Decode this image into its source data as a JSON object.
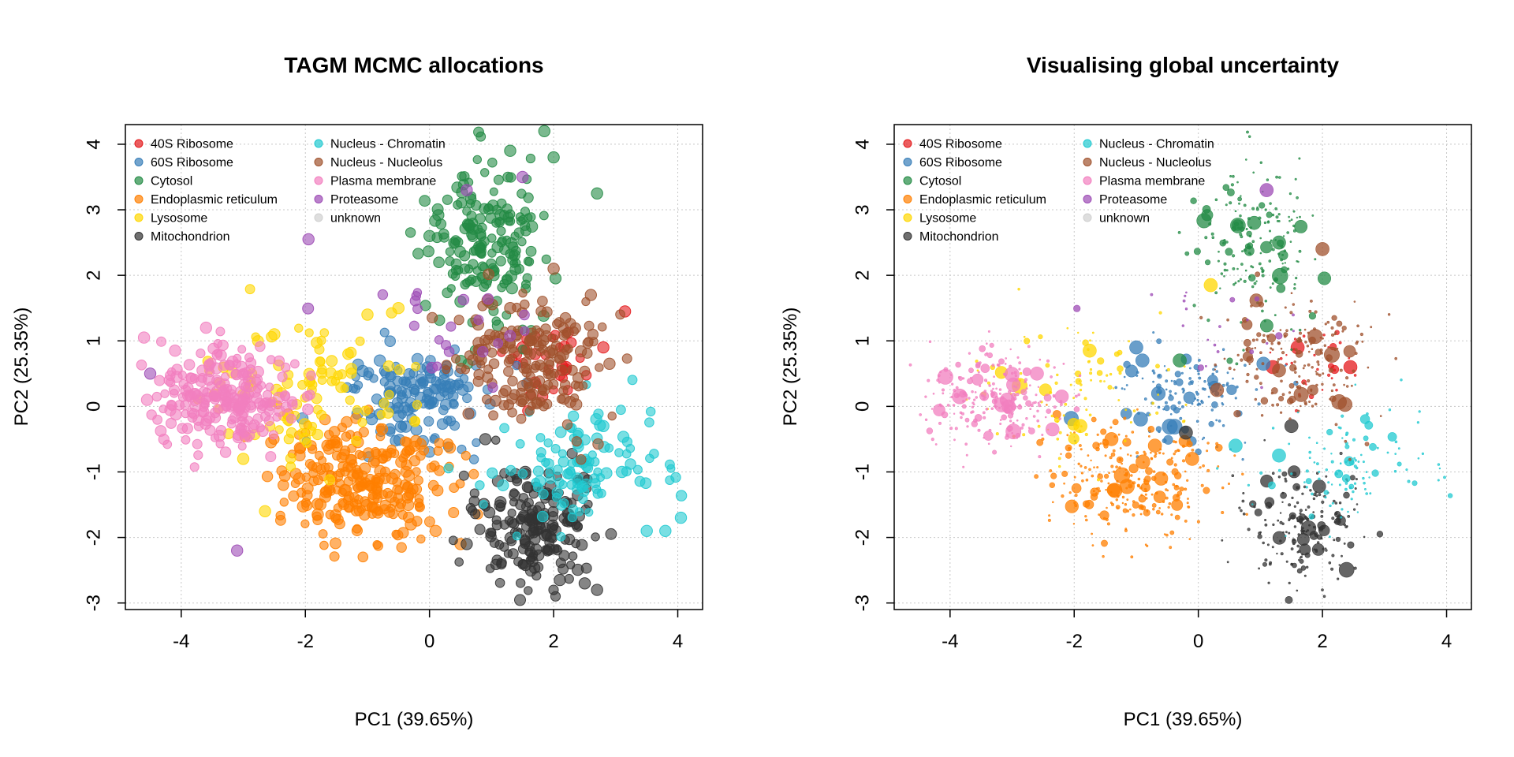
{
  "chart_data": [
    {
      "type": "scatter",
      "title": "TAGM MCMC allocations",
      "xlabel": "PC1 (39.65%)",
      "ylabel": "PC2 (25.35%)",
      "xlim": [
        -4.9,
        4.4
      ],
      "ylim": [
        -3.1,
        4.3
      ],
      "x_ticks": [
        -4,
        -2,
        0,
        2,
        4
      ],
      "y_ticks": [
        -3,
        -2,
        -1,
        0,
        1,
        2,
        3,
        4
      ],
      "x_tick_labels": [
        "-4",
        "-2",
        "0",
        "2",
        "4"
      ],
      "y_tick_labels": [
        "-3",
        "-2",
        "-1",
        "0",
        "1",
        "2",
        "3",
        "4"
      ],
      "grid": true,
      "legend_position": "top-left",
      "point_sizing": "uniform",
      "legend": [
        "40S Ribosome",
        "60S Ribosome",
        "Cytosol",
        "Endoplasmic reticulum",
        "Lysosome",
        "Mitochondrion",
        "Nucleus - Chromatin",
        "Nucleus - Nucleolus",
        "Plasma membrane",
        "Proteasome",
        "unknown"
      ],
      "clusters": [
        {
          "name": "40S Ribosome",
          "color": "#e41a1c",
          "center": [
            1.8,
            0.75
          ],
          "spread": [
            0.35,
            0.3
          ],
          "count": 30,
          "points": [
            [
              3.15,
              1.45
            ],
            [
              1.5,
              0.9
            ],
            [
              1.7,
              0.8
            ],
            [
              2.8,
              0.9
            ],
            [
              2.2,
              0.6
            ]
          ]
        },
        {
          "name": "60S Ribosome",
          "color": "#377eb8",
          "center": [
            -0.2,
            0.15
          ],
          "spread": [
            0.55,
            0.35
          ],
          "count": 140,
          "points": [
            [
              -0.8,
              0.7
            ],
            [
              0.3,
              0.3
            ],
            [
              -0.5,
              -0.15
            ]
          ]
        },
        {
          "name": "Cytosol",
          "color": "#238b45",
          "center": [
            1.0,
            2.5
          ],
          "spread": [
            0.5,
            0.65
          ],
          "count": 180,
          "points": [
            [
              1.85,
              4.2
            ],
            [
              1.3,
              3.9
            ],
            [
              2.7,
              3.25
            ],
            [
              2.0,
              3.8
            ],
            [
              0.0,
              2.6
            ],
            [
              0.5,
              1.6
            ]
          ]
        },
        {
          "name": "Endoplasmic reticulum",
          "color": "#ff7f00",
          "center": [
            -1.0,
            -1.1
          ],
          "spread": [
            0.7,
            0.45
          ],
          "count": 260,
          "points": [
            [
              -1.8,
              -1.65
            ],
            [
              0.5,
              -2.1
            ],
            [
              -2.1,
              -1.1
            ],
            [
              0.1,
              -1.9
            ],
            [
              -0.3,
              -1.8
            ]
          ]
        },
        {
          "name": "Lysosome",
          "color": "#ffd700",
          "center": [
            -1.9,
            0.35
          ],
          "spread": [
            0.9,
            0.5
          ],
          "count": 95,
          "points": [
            [
              -2.65,
              -1.6
            ],
            [
              -1.0,
              1.4
            ],
            [
              -2.5,
              1.1
            ],
            [
              -0.5,
              1.5
            ],
            [
              -3.0,
              -0.8
            ]
          ]
        },
        {
          "name": "Mitochondrion",
          "color": "#333333",
          "center": [
            1.7,
            -1.85
          ],
          "spread": [
            0.45,
            0.45
          ],
          "count": 190,
          "points": [
            [
              2.7,
              -2.8
            ],
            [
              2.5,
              -2.7
            ],
            [
              0.9,
              -0.5
            ],
            [
              2.1,
              -2.65
            ],
            [
              0.6,
              -2.1
            ]
          ]
        },
        {
          "name": "Nucleus - Chromatin",
          "color": "#20c9d0",
          "center": [
            2.5,
            -0.9
          ],
          "spread": [
            0.7,
            0.45
          ],
          "count": 110,
          "points": [
            [
              4.05,
              -1.7
            ],
            [
              3.8,
              -1.9
            ],
            [
              3.5,
              -1.9
            ],
            [
              3.1,
              -1.0
            ],
            [
              2.8,
              -0.3
            ]
          ]
        },
        {
          "name": "Nucleus - Nucleolus",
          "color": "#a0522d",
          "center": [
            1.6,
            0.7
          ],
          "spread": [
            0.55,
            0.5
          ],
          "count": 180,
          "points": [
            [
              2.6,
              1.7
            ],
            [
              2.9,
              0.65
            ],
            [
              2.0,
              2.1
            ],
            [
              1.3,
              1.5
            ]
          ]
        },
        {
          "name": "Plasma membrane",
          "color": "#f27fbf",
          "center": [
            -3.3,
            0.1
          ],
          "spread": [
            0.6,
            0.38
          ],
          "count": 230,
          "points": [
            [
              -4.6,
              1.05
            ],
            [
              -4.55,
              0.1
            ],
            [
              -4.1,
              0.85
            ],
            [
              -3.6,
              1.2
            ]
          ]
        },
        {
          "name": "Proteasome",
          "color": "#9d4bb5",
          "center": [
            0.4,
            1.2
          ],
          "spread": [
            0.7,
            0.5
          ],
          "count": 22,
          "points": [
            [
              -1.95,
              2.55
            ],
            [
              -3.1,
              -2.2
            ],
            [
              -4.5,
              0.5
            ],
            [
              1.5,
              3.5
            ],
            [
              0.6,
              3.3
            ]
          ]
        },
        {
          "name": "unknown",
          "color": "#d0d0d0",
          "center": [
            0.0,
            0.0
          ],
          "spread": [
            0.0,
            0.0
          ],
          "count": 0,
          "points": []
        }
      ]
    },
    {
      "type": "scatter",
      "title": "Visualising global uncertainty",
      "xlabel": "PC1 (39.65%)",
      "ylabel": "PC2 (25.35%)",
      "xlim": [
        -4.9,
        4.4
      ],
      "ylim": [
        -3.1,
        4.3
      ],
      "x_ticks": [
        -4,
        -2,
        0,
        2,
        4
      ],
      "y_ticks": [
        -3,
        -2,
        -1,
        0,
        1,
        2,
        3,
        4
      ],
      "x_tick_labels": [
        "-4",
        "-2",
        "0",
        "2",
        "4"
      ],
      "y_tick_labels": [
        "-3",
        "-2",
        "-1",
        "0",
        "1",
        "2",
        "3",
        "4"
      ],
      "grid": true,
      "legend_position": "top-left",
      "point_sizing": "uncertainty",
      "legend": [
        "40S Ribosome",
        "60S Ribosome",
        "Cytosol",
        "Endoplasmic reticulum",
        "Lysosome",
        "Mitochondrion",
        "Nucleus - Chromatin",
        "Nucleus - Nucleolus",
        "Plasma membrane",
        "Proteasome",
        "unknown"
      ],
      "clusters": [
        {
          "name": "40S Ribosome",
          "color": "#e41a1c",
          "center": [
            1.8,
            0.75
          ],
          "spread": [
            0.35,
            0.3
          ],
          "count": 30,
          "points": [
            [
              1.6,
              0.9
            ],
            [
              2.45,
              0.6
            ],
            [
              1.2,
              0.6
            ]
          ]
        },
        {
          "name": "60S Ribosome",
          "color": "#377eb8",
          "center": [
            -0.2,
            0.15
          ],
          "spread": [
            0.55,
            0.35
          ],
          "count": 140,
          "points": [
            [
              -1.0,
              0.9
            ],
            [
              -0.9,
              0.7
            ],
            [
              1.05,
              0.65
            ]
          ]
        },
        {
          "name": "Cytosol",
          "color": "#238b45",
          "center": [
            1.0,
            2.5
          ],
          "spread": [
            0.5,
            0.65
          ],
          "count": 180,
          "points": [
            [
              0.9,
              2.8
            ],
            [
              1.3,
              2.5
            ],
            [
              -0.3,
              0.7
            ]
          ]
        },
        {
          "name": "Endoplasmic reticulum",
          "color": "#ff7f00",
          "center": [
            -1.0,
            -1.1
          ],
          "spread": [
            0.7,
            0.45
          ],
          "count": 260,
          "points": [
            [
              -0.7,
              -0.6
            ],
            [
              -1.4,
              -0.5
            ],
            [
              -0.1,
              -0.8
            ]
          ]
        },
        {
          "name": "Lysosome",
          "color": "#ffd700",
          "center": [
            -1.9,
            0.35
          ],
          "spread": [
            0.9,
            0.5
          ],
          "count": 95,
          "points": [
            [
              -1.9,
              -0.3
            ],
            [
              -1.75,
              0.85
            ],
            [
              0.2,
              1.85
            ]
          ]
        },
        {
          "name": "Mitochondrion",
          "color": "#333333",
          "center": [
            1.7,
            -1.85
          ],
          "spread": [
            0.45,
            0.45
          ],
          "count": 190,
          "points": [
            [
              -0.2,
              -0.4
            ],
            [
              1.5,
              -0.3
            ]
          ]
        },
        {
          "name": "Nucleus - Chromatin",
          "color": "#20c9d0",
          "center": [
            2.5,
            -0.9
          ],
          "spread": [
            0.7,
            0.45
          ],
          "count": 110,
          "points": [
            [
              0.6,
              -0.6
            ],
            [
              1.3,
              -0.75
            ]
          ]
        },
        {
          "name": "Nucleus - Nucleolus",
          "color": "#a0522d",
          "center": [
            1.6,
            0.7
          ],
          "spread": [
            0.55,
            0.5
          ],
          "count": 180,
          "points": [
            [
              0.3,
              0.25
            ],
            [
              1.3,
              0.55
            ],
            [
              2.0,
              2.4
            ]
          ]
        },
        {
          "name": "Plasma membrane",
          "color": "#f27fbf",
          "center": [
            -3.3,
            0.1
          ],
          "spread": [
            0.6,
            0.38
          ],
          "count": 230,
          "points": [
            [
              -2.6,
              0.5
            ],
            [
              -2.2,
              0.15
            ],
            [
              -2.35,
              -0.35
            ]
          ]
        },
        {
          "name": "Proteasome",
          "color": "#9d4bb5",
          "center": [
            0.4,
            1.2
          ],
          "spread": [
            0.7,
            0.5
          ],
          "count": 22,
          "points": [
            [
              1.1,
              3.3
            ]
          ]
        },
        {
          "name": "unknown",
          "color": "#d0d0d0",
          "center": [
            0.0,
            0.0
          ],
          "spread": [
            0.0,
            0.0
          ],
          "count": 0,
          "points": []
        }
      ]
    }
  ]
}
